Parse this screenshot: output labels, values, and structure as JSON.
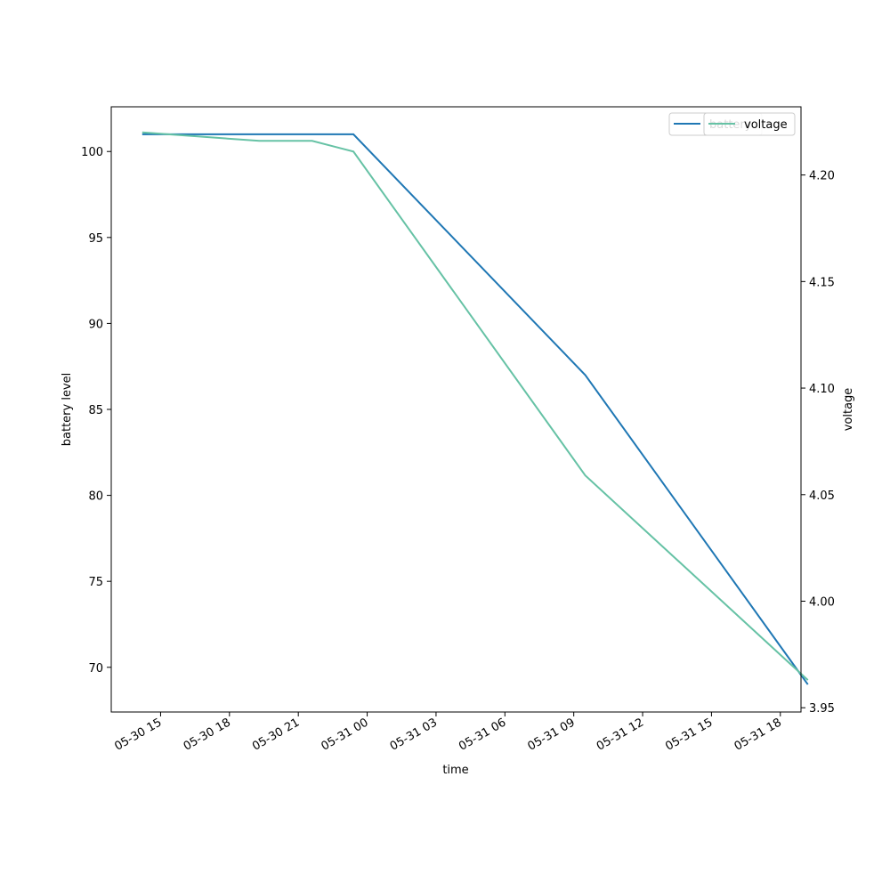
{
  "chart_data": {
    "type": "line",
    "xlabel": "time",
    "x_ticks": [
      "05-30 15",
      "05-30 18",
      "05-30 21",
      "05-31 00",
      "05-31 03",
      "05-31 06",
      "05-31 09",
      "05-31 12",
      "05-31 15",
      "05-31 18"
    ],
    "x_tick_hours": [
      15,
      18,
      21,
      24,
      27,
      30,
      33,
      36,
      39,
      42
    ],
    "xlim_hours": [
      12.85,
      42.9
    ],
    "left_axis": {
      "label": "battery level",
      "ylim": [
        67.4,
        102.6
      ],
      "ticks": [
        70,
        75,
        80,
        85,
        90,
        95,
        100
      ]
    },
    "right_axis": {
      "label": "voltage",
      "ylim": [
        3.948,
        4.232
      ],
      "ticks": [
        "3.95",
        "4.00",
        "4.05",
        "4.10",
        "4.15",
        "4.20"
      ]
    },
    "series": [
      {
        "name": "battery",
        "axis": "left",
        "color": "#1f77b4",
        "x_hours": [
          14.2,
          23.4,
          33.5,
          43.2
        ],
        "x": [
          "05-30 14:12",
          "05-30 23:24",
          "05-31 09:30",
          "05-31 19:12"
        ],
        "values": [
          101,
          101,
          87,
          69
        ]
      },
      {
        "name": "voltage",
        "axis": "right",
        "color": "#66c2a5",
        "x_hours": [
          14.2,
          19.3,
          21.6,
          23.4,
          33.5,
          43.2
        ],
        "x": [
          "05-30 14:12",
          "05-30 19:18",
          "05-30 21:36",
          "05-30 23:24",
          "05-31 09:30",
          "05-31 19:12"
        ],
        "values": [
          4.22,
          4.216,
          4.216,
          4.211,
          4.059,
          3.963
        ]
      }
    ],
    "legend": {
      "placement": "top-right",
      "entries": [
        "battery",
        "voltage"
      ]
    }
  }
}
